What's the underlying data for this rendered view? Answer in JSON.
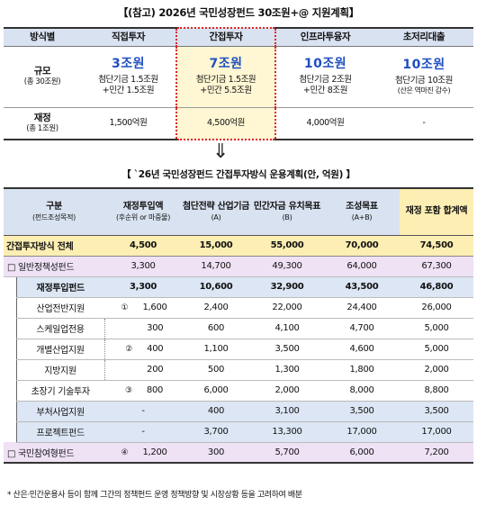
{
  "title1": "【(참고) 2026년 국민성장펀드 30조원+@ 지원계획】",
  "t1": {
    "headers": [
      "방식별",
      "직접투자",
      "간접투자",
      "인프라투융자",
      "초저리대출"
    ],
    "scale_label": "규모",
    "scale_sub": "(총 30조원)",
    "scale": [
      {
        "big": "3조원",
        "line1": "첨단기금 1.5조원",
        "line2": "+민간 1.5조원"
      },
      {
        "big": "7조원",
        "line1": "첨단기금 1.5조원",
        "line2": "+민간 5.5조원"
      },
      {
        "big": "10조원",
        "line1": "첨단기금 2조원",
        "line2": "+민간 8조원"
      },
      {
        "big": "10조원",
        "line1": "첨단기금 10조원",
        "line2": "(산은 역마진 감수)"
      }
    ],
    "fin_label": "재정",
    "fin_sub": "(총 1조원)",
    "fin": [
      "1,500억원",
      "4,500억원",
      "4,000억원",
      "-"
    ]
  },
  "arrow": "⇓",
  "title2": "【 `26년 국민성장펀드 간접투자방식 운용계획(안, 억원) 】",
  "t2": {
    "h_cat": "구분",
    "h_cat_sub": "(펀드조성목적)",
    "h_fin": "재정투입액",
    "h_fin_sub": "(후순위 or 마중물)",
    "h_adv": "첨단전략 산업기금",
    "h_adv_sub": "(A)",
    "h_priv": "민간자금 유치목표",
    "h_priv_sub": "(B)",
    "h_goal": "조성목표",
    "h_goal_sub": "(A+B)",
    "h_total": "재정 포함 합계액",
    "rows": {
      "total": {
        "label": "간접투자방식 전체",
        "fin": "4,500",
        "adv": "15,000",
        "priv": "55,000",
        "goal": "70,000",
        "sum": "74,500"
      },
      "general": {
        "label": "□ 일반정책성펀드",
        "fin": "3,300",
        "adv": "14,700",
        "priv": "49,300",
        "goal": "64,000",
        "sum": "67,300"
      },
      "fiscal": {
        "label": "재정투입펀드",
        "fin": "3,300",
        "adv": "10,600",
        "priv": "32,900",
        "goal": "43,500",
        "sum": "46,800"
      },
      "r1": {
        "label": "산업전반지원",
        "mark": "①",
        "fin": "1,600",
        "adv": "2,400",
        "priv": "22,000",
        "goal": "24,400",
        "sum": "26,000"
      },
      "r2": {
        "label": "스케일업전용",
        "fin": "300",
        "adv": "600",
        "priv": "4,100",
        "goal": "4,700",
        "sum": "5,000"
      },
      "r3": {
        "label": "개별산업지원",
        "mark": "②",
        "fin": "400",
        "adv": "1,100",
        "priv": "3,500",
        "goal": "4,600",
        "sum": "5,000"
      },
      "r4": {
        "label": "지방지원",
        "fin": "200",
        "adv": "500",
        "priv": "1,300",
        "goal": "1,800",
        "sum": "2,000"
      },
      "r5": {
        "label": "초장기 기술투자",
        "mark": "③",
        "fin": "800",
        "adv": "6,000",
        "priv": "2,000",
        "goal": "8,000",
        "sum": "8,800"
      },
      "r6": {
        "label": "부처사업지원",
        "fin": "-",
        "adv": "400",
        "priv": "3,100",
        "goal": "3,500",
        "sum": "3,500"
      },
      "r7": {
        "label": "프로젝트펀드",
        "fin": "-",
        "adv": "3,700",
        "priv": "13,300",
        "goal": "17,000",
        "sum": "17,000"
      },
      "r8": {
        "label": "□ 국민참여형펀드",
        "mark": "④",
        "fin": "1,200",
        "adv": "300",
        "priv": "5,700",
        "goal": "6,000",
        "sum": "7,200"
      }
    }
  },
  "footnote": "* 산은·민간운용사 등이 함께 그간의 정책펀드 운영 정책방향 및 시장상황 등을 고려하여 배분"
}
